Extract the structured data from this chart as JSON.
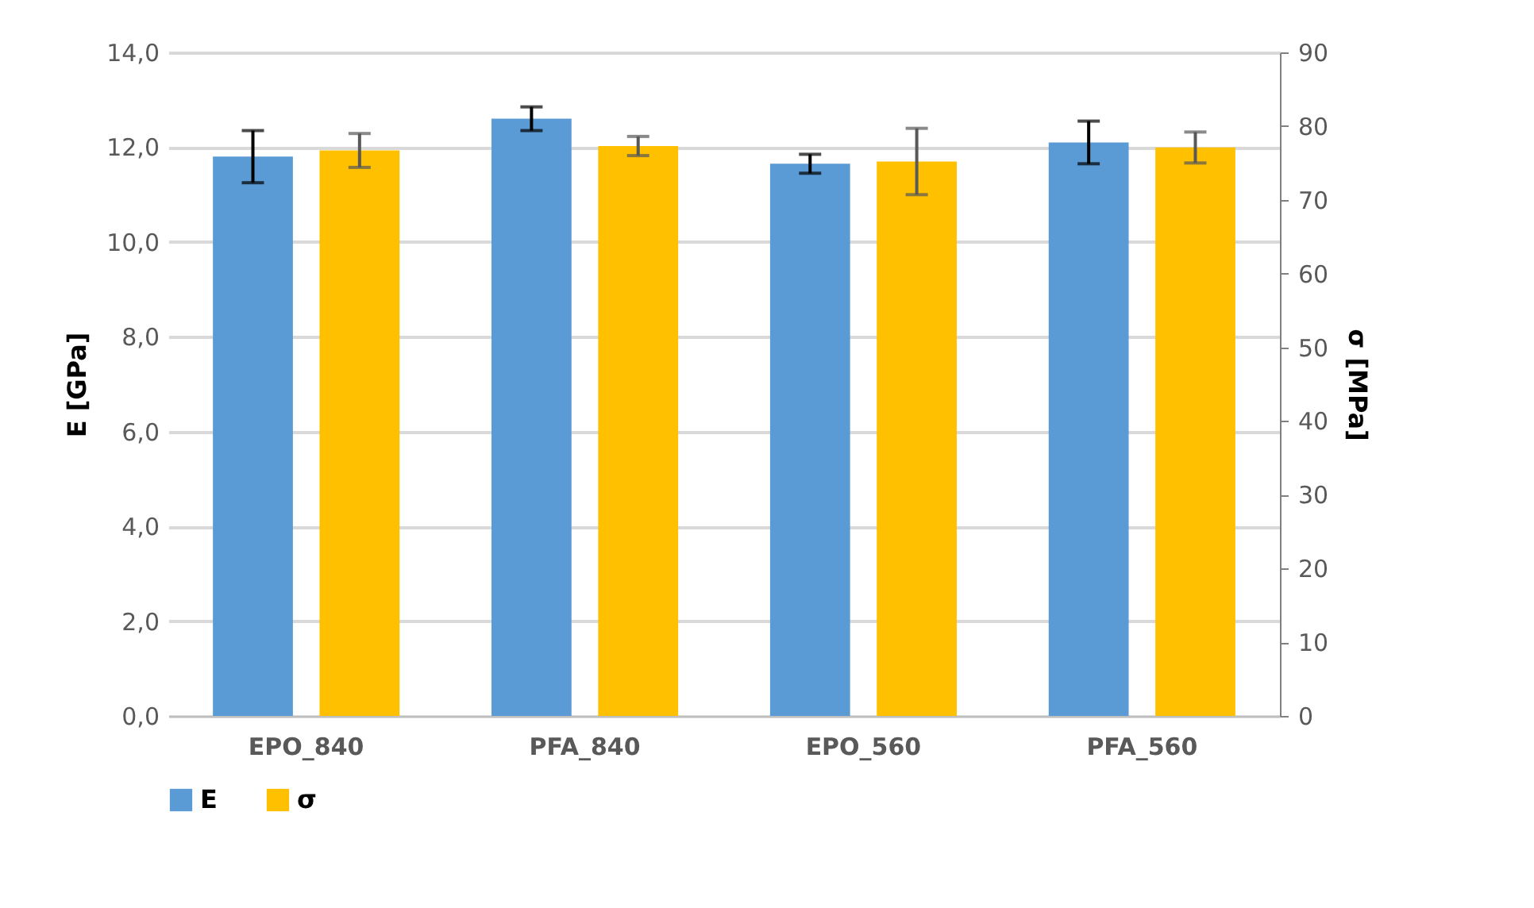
{
  "chart_data": {
    "type": "bar",
    "ylabel": "E [GPa]",
    "y2label": "σ [MPa]",
    "categories": [
      "EPO_840",
      "PFA_840",
      "EPO_560",
      "PFA_560"
    ],
    "series": [
      {
        "name": "E",
        "color": "#5b9bd5",
        "values": [
          11.8,
          12.6,
          11.65,
          12.1
        ],
        "errors": [
          0.55,
          0.25,
          0.2,
          0.45
        ]
      },
      {
        "name": "σ",
        "color": "#ffc000",
        "axis": "y2",
        "values": [
          76.7,
          77.3,
          75.2,
          77.1
        ],
        "errors": [
          2.3,
          1.3,
          4.5,
          2.1
        ]
      }
    ],
    "ylim": [
      0,
      14
    ],
    "yticks": [
      {
        "value": 0,
        "label": "0,0"
      },
      {
        "value": 2,
        "label": "2,0"
      },
      {
        "value": 4,
        "label": "4,0"
      },
      {
        "value": 6,
        "label": "6,0"
      },
      {
        "value": 8,
        "label": "8,0"
      },
      {
        "value": 10,
        "label": "10,0"
      },
      {
        "value": 12,
        "label": "12,0"
      },
      {
        "value": 14,
        "label": "14,0"
      }
    ],
    "y2lim": [
      0,
      90
    ],
    "y2ticks": [
      0,
      10,
      20,
      30,
      40,
      50,
      60,
      70,
      80,
      90
    ],
    "grid": "y",
    "legend": "bottom"
  }
}
